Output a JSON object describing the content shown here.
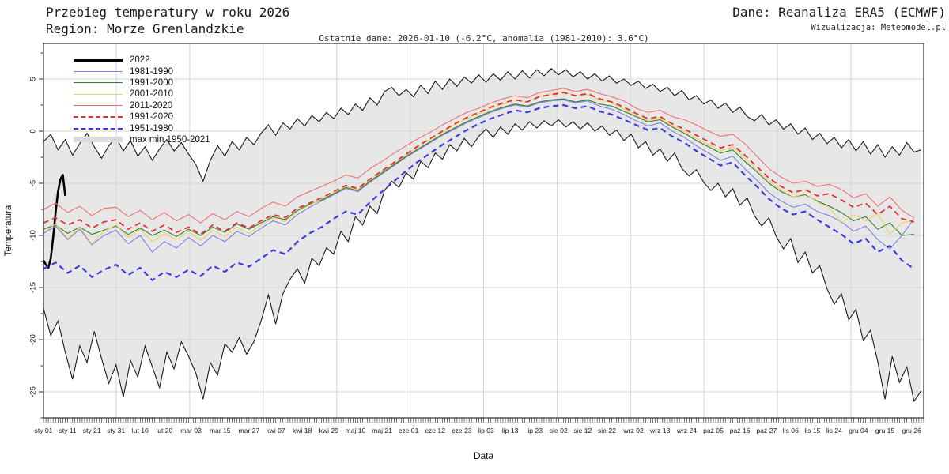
{
  "header": {
    "title": "Przebieg temperatury w roku 2026",
    "region": "Region: Morze Grenlandzkie",
    "source": "Dane: Reanaliza ERA5 (ECMWF)",
    "visualization": "Wizualizacja: Meteomodel.pl",
    "subtitle": "Ostatnie dane: 2026-01-10 (-6.2°C, anomalia (1981-2010): 3.6°C)"
  },
  "chart_data": {
    "type": "line",
    "title": "Przebieg temperatury w roku 2026 — Morze Grenlandzkie",
    "xlabel": "Data",
    "ylabel": "Temperatura",
    "ylim": [
      -27.5,
      8.4
    ],
    "grid": true,
    "legend_position": "upper-left",
    "y_ticks": [
      5,
      0,
      -5,
      -10,
      -15,
      -20,
      -25
    ],
    "x_ticks": [
      {
        "label": "sty 01",
        "day": 1
      },
      {
        "label": "sty 11",
        "day": 11
      },
      {
        "label": "sty 21",
        "day": 21
      },
      {
        "label": "sty 31",
        "day": 31
      },
      {
        "label": "lut 10",
        "day": 41
      },
      {
        "label": "lut 20",
        "day": 51
      },
      {
        "label": "mar 03",
        "day": 62
      },
      {
        "label": "mar 15",
        "day": 74
      },
      {
        "label": "mar 27",
        "day": 86
      },
      {
        "label": "kwi 07",
        "day": 97
      },
      {
        "label": "kwi 18",
        "day": 108
      },
      {
        "label": "kwi 29",
        "day": 119
      },
      {
        "label": "maj 10",
        "day": 130
      },
      {
        "label": "maj 21",
        "day": 141
      },
      {
        "label": "cze 01",
        "day": 152
      },
      {
        "label": "cze 12",
        "day": 163
      },
      {
        "label": "cze 23",
        "day": 174
      },
      {
        "label": "lip 03",
        "day": 184
      },
      {
        "label": "lip 13",
        "day": 194
      },
      {
        "label": "lip 23",
        "day": 204
      },
      {
        "label": "sie 02",
        "day": 214
      },
      {
        "label": "sie 12",
        "day": 224
      },
      {
        "label": "sie 22",
        "day": 234
      },
      {
        "label": "wrz 02",
        "day": 245
      },
      {
        "label": "wrz 13",
        "day": 256
      },
      {
        "label": "wrz 24",
        "day": 267
      },
      {
        "label": "paź 05",
        "day": 278
      },
      {
        "label": "paź 16",
        "day": 289
      },
      {
        "label": "paź 27",
        "day": 300
      },
      {
        "label": "lis 06",
        "day": 310
      },
      {
        "label": "lis 15",
        "day": 319
      },
      {
        "label": "lis 24",
        "day": 328
      },
      {
        "label": "gru 04",
        "day": 338
      },
      {
        "label": "gru 15",
        "day": 349
      },
      {
        "label": "gru 26",
        "day": 360
      }
    ],
    "legend": [
      {
        "label": "2022",
        "color": "#000000",
        "dash": false,
        "thick": 3,
        "band": false
      },
      {
        "label": "1981-1990",
        "color": "#8080e8",
        "dash": false,
        "thick": 1.5,
        "band": false
      },
      {
        "label": "1991-2000",
        "color": "#2e7d32",
        "dash": false,
        "thick": 1.5,
        "band": false
      },
      {
        "label": "2001-2010",
        "color": "#edd45a",
        "dash": false,
        "thick": 1.5,
        "band": false
      },
      {
        "label": "2011-2020",
        "color": "#ef7070",
        "dash": false,
        "thick": 1.5,
        "band": false
      },
      {
        "label": "1991-2020",
        "color": "#e33030",
        "dash": true,
        "thick": 2,
        "band": false
      },
      {
        "label": "1951-1980",
        "color": "#3b3bdf",
        "dash": true,
        "thick": 2.4,
        "band": false
      },
      {
        "label": "max min 1950-2021",
        "color": "#dcdcdc",
        "dash": false,
        "thick": 7,
        "band": true
      }
    ],
    "band": {
      "name": "max min 1950-2021",
      "fill": "#e7e7e7",
      "edge": "#1a1a1a",
      "day_start": 1,
      "day_step": 3,
      "max": [
        -1.0,
        -0.3,
        -1.8,
        -0.8,
        -2.3,
        -1.2,
        -0.2,
        -1.5,
        -2.6,
        -1.4,
        -0.6,
        -1.9,
        -0.9,
        -2.4,
        -1.5,
        -2.8,
        -1.7,
        -0.8,
        -1.9,
        -1.1,
        -2.2,
        -3.2,
        -4.8,
        -2.8,
        -1.4,
        -2.4,
        -1.0,
        -1.8,
        -0.6,
        -1.3,
        -0.2,
        0.6,
        -0.4,
        0.8,
        0.2,
        1.2,
        0.5,
        1.5,
        0.9,
        1.8,
        1.2,
        2.2,
        1.6,
        2.6,
        2.0,
        3.2,
        2.5,
        3.8,
        4.2,
        3.4,
        4.0,
        3.3,
        4.4,
        3.6,
        4.8,
        4.0,
        5.0,
        4.3,
        5.2,
        4.6,
        5.4,
        4.7,
        5.5,
        4.9,
        5.7,
        5.0,
        5.8,
        5.1,
        5.9,
        5.3,
        6.0,
        5.4,
        5.9,
        5.2,
        5.7,
        5.0,
        5.5,
        4.8,
        5.3,
        4.6,
        5.0,
        4.4,
        4.8,
        4.1,
        4.5,
        3.8,
        4.2,
        3.4,
        3.9,
        3.0,
        3.4,
        2.6,
        3.0,
        2.2,
        2.7,
        1.8,
        2.3,
        1.4,
        1.0,
        1.6,
        0.6,
        1.1,
        0.2,
        0.7,
        -0.3,
        0.3,
        -0.8,
        -0.2,
        -1.2,
        -0.6,
        -1.6,
        -0.8,
        -1.9,
        -1.0,
        -2.2,
        -1.3,
        -2.5,
        -1.5,
        -2.3,
        -1.1,
        -2.0,
        -1.8
      ],
      "min": [
        -17.0,
        -19.6,
        -18.2,
        -21.2,
        -23.8,
        -20.6,
        -22.2,
        -19.2,
        -21.8,
        -24.2,
        -22.4,
        -25.5,
        -22.0,
        -23.6,
        -20.6,
        -22.6,
        -24.6,
        -21.2,
        -22.8,
        -20.2,
        -21.6,
        -23.2,
        -25.7,
        -22.2,
        -23.4,
        -20.4,
        -21.2,
        -19.8,
        -21.4,
        -20.2,
        -18.2,
        -15.7,
        -18.5,
        -15.6,
        -14.2,
        -13.2,
        -14.6,
        -12.2,
        -12.9,
        -11.2,
        -11.8,
        -9.6,
        -10.6,
        -8.2,
        -9.0,
        -7.2,
        -7.9,
        -5.7,
        -4.8,
        -5.4,
        -4.0,
        -4.6,
        -2.9,
        -3.5,
        -2.1,
        -2.7,
        -1.3,
        -1.9,
        -0.7,
        -1.5,
        -0.5,
        0.2,
        -0.6,
        0.4,
        -0.3,
        0.7,
        0.1,
        0.9,
        0.3,
        1.0,
        0.5,
        1.1,
        0.4,
        0.9,
        0.2,
        0.8,
        0.0,
        0.5,
        -0.4,
        0.1,
        -0.9,
        -0.3,
        -1.6,
        -1.0,
        -2.3,
        -1.7,
        -2.9,
        -2.1,
        -3.6,
        -4.3,
        -3.7,
        -4.9,
        -5.7,
        -5.0,
        -6.3,
        -5.5,
        -7.1,
        -6.4,
        -8.1,
        -9.1,
        -8.3,
        -10.1,
        -11.3,
        -10.3,
        -12.6,
        -11.6,
        -13.6,
        -12.9,
        -15.1,
        -16.6,
        -15.6,
        -18.1,
        -17.1,
        -20.1,
        -19.1,
        -22.1,
        -25.7,
        -21.6,
        -24.1,
        -22.6,
        -25.9,
        -24.9
      ]
    },
    "series": [
      {
        "name": "2022",
        "color": "#000000",
        "width": 2.6,
        "dash": null,
        "day_start": 1,
        "day_step": 1,
        "values": [
          -12.4,
          -12.8,
          -13.1,
          -12.2,
          -10.2,
          -7.8,
          -5.8,
          -4.6,
          -4.2,
          -6.2
        ]
      },
      {
        "name": "1981-1990",
        "color": "#8080e8",
        "width": 1.1,
        "dash": null,
        "day_start": 1,
        "day_step": 5,
        "values": [
          -9.8,
          -9.1,
          -10.4,
          -9.4,
          -10.9,
          -10.0,
          -9.5,
          -10.8,
          -10.0,
          -11.6,
          -10.6,
          -11.2,
          -10.2,
          -11.0,
          -10.0,
          -10.6,
          -9.6,
          -10.1,
          -9.3,
          -8.6,
          -9.0,
          -8.0,
          -7.3,
          -6.7,
          -6.1,
          -5.5,
          -5.8,
          -4.9,
          -4.1,
          -3.3,
          -2.5,
          -1.8,
          -1.1,
          -0.4,
          0.2,
          0.8,
          1.3,
          1.8,
          2.2,
          2.5,
          2.3,
          2.7,
          2.9,
          3.0,
          2.7,
          2.9,
          2.4,
          2.1,
          1.6,
          1.0,
          0.5,
          0.8,
          0.0,
          -0.6,
          -1.4,
          -2.1,
          -2.8,
          -2.4,
          -3.6,
          -4.7,
          -5.9,
          -6.7,
          -7.3,
          -7.0,
          -7.7,
          -8.1,
          -8.7,
          -9.6,
          -9.1,
          -10.4,
          -11.3,
          -10.0,
          -8.4
        ]
      },
      {
        "name": "1991-2000",
        "color": "#2e7d32",
        "width": 1.1,
        "dash": null,
        "day_start": 1,
        "day_step": 5,
        "values": [
          -9.4,
          -9.0,
          -9.8,
          -9.2,
          -9.9,
          -9.5,
          -9.1,
          -9.9,
          -9.3,
          -10.0,
          -9.5,
          -10.1,
          -9.4,
          -10.0,
          -9.2,
          -9.7,
          -8.9,
          -9.4,
          -8.8,
          -8.2,
          -8.5,
          -7.6,
          -7.0,
          -6.6,
          -6.0,
          -5.4,
          -5.7,
          -4.8,
          -4.0,
          -3.2,
          -2.4,
          -1.7,
          -1.0,
          -0.3,
          0.3,
          0.9,
          1.4,
          1.9,
          2.3,
          2.6,
          2.4,
          2.8,
          3.0,
          3.1,
          2.8,
          3.0,
          2.6,
          2.4,
          1.9,
          1.4,
          0.9,
          1.1,
          0.4,
          -0.2,
          -0.9,
          -1.5,
          -2.1,
          -1.8,
          -2.9,
          -3.9,
          -5.0,
          -5.8,
          -6.3,
          -6.1,
          -6.7,
          -7.2,
          -7.8,
          -8.6,
          -8.2,
          -9.4,
          -8.8,
          -10.0,
          -9.9
        ]
      },
      {
        "name": "2001-2010",
        "color": "#edd45a",
        "width": 1.1,
        "dash": null,
        "day_start": 1,
        "day_step": 5,
        "values": [
          -9.7,
          -8.9,
          -10.3,
          -9.2,
          -10.8,
          -9.6,
          -9.0,
          -10.2,
          -9.4,
          -10.6,
          -9.8,
          -10.4,
          -9.6,
          -10.5,
          -9.5,
          -10.1,
          -9.2,
          -9.8,
          -9.0,
          -8.3,
          -8.7,
          -7.7,
          -7.1,
          -6.5,
          -5.9,
          -5.3,
          -5.6,
          -4.7,
          -3.9,
          -3.1,
          -2.3,
          -1.5,
          -0.8,
          -0.1,
          0.6,
          1.2,
          1.7,
          2.2,
          2.6,
          3.0,
          2.8,
          3.3,
          3.6,
          3.8,
          3.4,
          3.5,
          3.0,
          2.7,
          2.1,
          1.5,
          1.0,
          1.3,
          0.5,
          0.0,
          -0.7,
          -1.3,
          -1.9,
          -1.5,
          -2.6,
          -3.7,
          -4.8,
          -5.6,
          -6.3,
          -6.0,
          -6.8,
          -7.3,
          -8.8,
          -8.0,
          -8.6,
          -7.9,
          -9.9,
          -8.8,
          -8.5
        ]
      },
      {
        "name": "2011-2020",
        "color": "#ef7070",
        "width": 1.1,
        "dash": null,
        "day_start": 1,
        "day_step": 5,
        "values": [
          -7.5,
          -6.9,
          -7.8,
          -7.2,
          -8.1,
          -7.4,
          -7.3,
          -8.2,
          -7.6,
          -8.5,
          -7.8,
          -8.6,
          -8.0,
          -8.8,
          -7.9,
          -8.5,
          -7.7,
          -8.2,
          -7.4,
          -6.8,
          -7.2,
          -6.3,
          -5.8,
          -5.3,
          -4.8,
          -4.2,
          -4.5,
          -3.6,
          -2.9,
          -2.1,
          -1.4,
          -0.7,
          -0.1,
          0.6,
          1.2,
          1.8,
          2.2,
          2.7,
          3.1,
          3.4,
          3.2,
          3.7,
          3.9,
          4.1,
          3.8,
          4.0,
          3.6,
          3.3,
          2.9,
          2.2,
          1.8,
          2.0,
          1.4,
          1.1,
          0.6,
          0.0,
          -0.5,
          -0.3,
          -1.2,
          -2.4,
          -3.6,
          -4.4,
          -5.0,
          -4.8,
          -5.3,
          -5.1,
          -5.6,
          -6.4,
          -6.0,
          -7.2,
          -6.3,
          -7.6,
          -8.3
        ]
      },
      {
        "name": "1991-2020",
        "color": "#e33030",
        "width": 1.8,
        "dash": "7,5",
        "day_start": 1,
        "day_step": 5,
        "values": [
          -8.8,
          -8.3,
          -9.0,
          -8.5,
          -9.3,
          -8.7,
          -8.5,
          -9.4,
          -8.8,
          -9.6,
          -9.0,
          -9.7,
          -9.2,
          -9.9,
          -9.0,
          -9.6,
          -8.8,
          -9.3,
          -8.6,
          -8.0,
          -8.3,
          -7.4,
          -6.9,
          -6.4,
          -5.8,
          -5.2,
          -5.5,
          -4.6,
          -3.8,
          -3.0,
          -2.2,
          -1.4,
          -0.7,
          0.0,
          0.7,
          1.3,
          1.8,
          2.3,
          2.7,
          3.0,
          2.8,
          3.3,
          3.5,
          3.7,
          3.4,
          3.6,
          3.1,
          2.8,
          2.3,
          1.7,
          1.2,
          1.4,
          0.7,
          0.2,
          -0.4,
          -1.0,
          -1.6,
          -1.3,
          -2.3,
          -3.4,
          -4.5,
          -5.3,
          -5.9,
          -5.6,
          -6.2,
          -6.0,
          -6.6,
          -7.3,
          -6.9,
          -8.0,
          -7.2,
          -8.4,
          -8.7
        ]
      },
      {
        "name": "1951-1980",
        "color": "#3b3bdf",
        "width": 2.2,
        "dash": "7,5",
        "day_start": 1,
        "day_step": 5,
        "values": [
          -13.2,
          -12.6,
          -13.6,
          -12.9,
          -14.0,
          -13.3,
          -12.8,
          -13.8,
          -13.1,
          -14.3,
          -13.5,
          -14.0,
          -13.3,
          -13.9,
          -12.9,
          -13.5,
          -12.6,
          -13.0,
          -12.2,
          -11.4,
          -11.8,
          -10.6,
          -9.8,
          -9.2,
          -8.4,
          -7.7,
          -8.0,
          -6.8,
          -5.8,
          -4.8,
          -3.8,
          -2.9,
          -2.1,
          -1.3,
          -0.6,
          0.1,
          0.7,
          1.2,
          1.6,
          2.0,
          1.8,
          2.2,
          2.4,
          2.5,
          2.2,
          2.4,
          1.9,
          1.6,
          1.1,
          0.6,
          0.1,
          0.3,
          -0.5,
          -1.1,
          -1.9,
          -2.6,
          -3.3,
          -3.0,
          -4.2,
          -5.3,
          -6.5,
          -7.4,
          -8.0,
          -7.7,
          -8.5,
          -9.2,
          -9.9,
          -10.8,
          -10.3,
          -11.6,
          -11.0,
          -12.4,
          -13.2
        ]
      }
    ]
  }
}
